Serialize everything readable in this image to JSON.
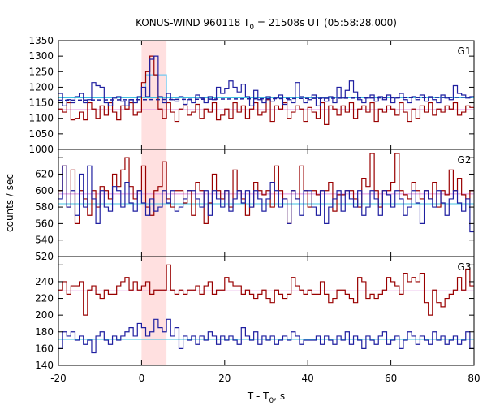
{
  "chart_data": {
    "type": "line",
    "title_parts": {
      "prefix": "KONUS-WIND 960118 T",
      "sub": "0",
      "suffix": " = 21508s UT (05:58:28.000)"
    },
    "xlabel_parts": {
      "prefix": "T - T",
      "sub": "0",
      "suffix": ", s"
    },
    "ylabel": "counts / sec",
    "xlim": [
      -20,
      80
    ],
    "x_ticks": [
      -20,
      0,
      20,
      40,
      60,
      80
    ],
    "x_tick_labels": [
      "-20",
      "0",
      "20",
      "40",
      "60",
      "80"
    ],
    "highlight_interval": [
      0.0,
      6.0
    ],
    "highlight_color": "#ffe0e0",
    "colors": {
      "red_series": "#990000",
      "blue_series": "#1f1fa0",
      "red_background": "#e090e0",
      "blue_background": "#40c0e0",
      "light_blue_step": "#70c8f0"
    },
    "bin_width": 1.0,
    "x_start": -20,
    "panels": [
      {
        "label": "G1",
        "ylim": [
          1000,
          1350
        ],
        "y_ticks": [
          1000,
          1050,
          1100,
          1150,
          1200,
          1250,
          1300,
          1350
        ],
        "y_tick_labels": [
          "1000",
          "1050",
          "1100",
          "1150",
          "1200",
          "1250",
          "1300",
          "1350"
        ],
        "background_red": 1128,
        "background_blue": 1166,
        "series": [
          {
            "color_key": "red_series",
            "values": [
              1130,
              1120,
              1150,
              1095,
              1100,
              1120,
              1095,
              1150,
              1130,
              1100,
              1140,
              1110,
              1150,
              1120,
              1095,
              1140,
              1130,
              1150,
              1110,
              1120,
              1215,
              1250,
              1300,
              1240,
              1130,
              1100,
              1150,
              1120,
              1090,
              1130,
              1140,
              1110,
              1120,
              1145,
              1100,
              1130,
              1120,
              1150,
              1095,
              1110,
              1130,
              1100,
              1150,
              1120,
              1140,
              1100,
              1130,
              1150,
              1110,
              1120,
              1160,
              1090,
              1140,
              1130,
              1150,
              1100,
              1120,
              1140,
              1130,
              1090,
              1135,
              1120,
              1100,
              1150,
              1080,
              1140,
              1130,
              1110,
              1140,
              1120,
              1150,
              1100,
              1130,
              1140,
              1120,
              1150,
              1090,
              1130,
              1120,
              1140,
              1130,
              1110,
              1150,
              1120,
              1090,
              1130,
              1100,
              1140,
              1120,
              1150,
              1110,
              1130,
              1120,
              1140,
              1130,
              1150,
              1110,
              1120,
              1140,
              1135
            ]
          },
          {
            "color_key": "blue_series",
            "values": [
              1180,
              1140,
              1160,
              1150,
              1170,
              1180,
              1150,
              1160,
              1215,
              1205,
              1200,
              1150,
              1140,
              1165,
              1170,
              1155,
              1140,
              1160,
              1150,
              1170,
              1200,
              1170,
              1290,
              1300,
              1170,
              1150,
              1180,
              1160,
              1155,
              1170,
              1145,
              1160,
              1150,
              1175,
              1165,
              1150,
              1170,
              1160,
              1200,
              1180,
              1195,
              1220,
              1200,
              1185,
              1210,
              1170,
              1140,
              1190,
              1160,
              1150,
              1170,
              1155,
              1165,
              1175,
              1145,
              1160,
              1150,
              1215,
              1170,
              1150,
              1160,
              1175,
              1140,
              1165,
              1155,
              1170,
              1150,
              1200,
              1165,
              1190,
              1220,
              1185,
              1160,
              1150,
              1165,
              1175,
              1155,
              1170,
              1160,
              1175,
              1150,
              1165,
              1180,
              1160,
              1150,
              1170,
              1160,
              1175,
              1155,
              1170,
              1160,
              1150,
              1175,
              1165,
              1160,
              1205,
              1180,
              1175,
              1165,
              1170
            ]
          }
        ],
        "dashed_blue": {
          "x": [
            -20,
            80
          ],
          "y": [
            1158,
            1168
          ]
        },
        "light_blue_box": {
          "x": [
            1,
            6
          ],
          "y": 1240
        },
        "label_x": 76
      },
      {
        "label": "G2",
        "ylim": [
          520,
          650
        ],
        "y_ticks": [
          520,
          540,
          560,
          580,
          600,
          620,
          640
        ],
        "y_tick_labels": [
          "520",
          "540",
          "560",
          "580",
          "600",
          "620",
          "640"
        ],
        "background_red": 596,
        "background_blue": 584,
        "series": [
          {
            "color_key": "red_series",
            "values": [
              600,
              630,
              580,
              625,
              560,
              600,
              590,
              570,
              600,
              580,
              605,
              600,
              590,
              620,
              605,
              625,
              640,
              605,
              590,
              600,
              630,
              580,
              570,
              600,
              605,
              635,
              590,
              580,
              600,
              600,
              585,
              600,
              570,
              610,
              600,
              560,
              585,
              620,
              600,
              590,
              600,
              580,
              625,
              600,
              590,
              570,
              580,
              610,
              600,
              595,
              600,
              580,
              630,
              600,
              590,
              560,
              600,
              590,
              630,
              600,
              580,
              600,
              595,
              600,
              600,
              610,
              575,
              595,
              595,
              600,
              600,
              590,
              580,
              615,
              605,
              645,
              600,
              580,
              600,
              600,
              610,
              645,
              600,
              595,
              590,
              610,
              600,
              590,
              600,
              590,
              610,
              580,
              600,
              595,
              625,
              600,
              615,
              595,
              590,
              600
            ]
          },
          {
            "color_key": "blue_series",
            "values": [
              590,
              630,
              580,
              600,
              570,
              620,
              580,
              630,
              590,
              560,
              600,
              580,
              575,
              605,
              600,
              580,
              610,
              585,
              575,
              600,
              585,
              570,
              590,
              575,
              580,
              600,
              585,
              600,
              575,
              580,
              590,
              600,
              600,
              590,
              580,
              600,
              570,
              600,
              590,
              580,
              600,
              575,
              590,
              600,
              585,
              600,
              580,
              600,
              590,
              575,
              590,
              610,
              600,
              580,
              590,
              560,
              600,
              590,
              570,
              600,
              600,
              580,
              570,
              600,
              560,
              580,
              590,
              600,
              575,
              600,
              590,
              580,
              600,
              570,
              580,
              600,
              590,
              570,
              600,
              595,
              580,
              600,
              590,
              570,
              580,
              600,
              585,
              560,
              600,
              590,
              580,
              600,
              585,
              570,
              590,
              600,
              585,
              575,
              590,
              550
            ]
          }
        ],
        "label_x": 76
      },
      {
        "label": "G3",
        "ylim": [
          140,
          270
        ],
        "y_ticks": [
          140,
          160,
          180,
          200,
          220,
          240,
          260
        ],
        "y_tick_labels": [
          "140",
          "160",
          "180",
          "200",
          "220",
          "240",
          "260"
        ],
        "background_red": 229,
        "background_blue": 171,
        "series": [
          {
            "color_key": "red_series",
            "values": [
              230,
              240,
              225,
              235,
              235,
              240,
              200,
              230,
              235,
              225,
              220,
              230,
              225,
              225,
              235,
              240,
              245,
              230,
              240,
              230,
              235,
              240,
              225,
              230,
              230,
              230,
              260,
              230,
              225,
              230,
              225,
              230,
              230,
              235,
              225,
              235,
              240,
              225,
              230,
              230,
              245,
              240,
              235,
              235,
              225,
              230,
              225,
              220,
              225,
              230,
              220,
              215,
              230,
              225,
              220,
              225,
              245,
              235,
              230,
              225,
              230,
              225,
              225,
              240,
              225,
              215,
              220,
              230,
              230,
              225,
              220,
              215,
              245,
              240,
              220,
              225,
              220,
              225,
              230,
              245,
              240,
              235,
              225,
              250,
              240,
              245,
              240,
              250,
              215,
              200,
              230,
              215,
              210,
              220,
              225,
              230,
              245,
              230,
              255,
              235
            ]
          },
          {
            "color_key": "blue_series",
            "values": [
              160,
              180,
              175,
              180,
              170,
              175,
              165,
              170,
              155,
              175,
              180,
              170,
              165,
              175,
              170,
              175,
              180,
              185,
              175,
              190,
              185,
              175,
              180,
              195,
              185,
              180,
              195,
              175,
              185,
              160,
              175,
              170,
              175,
              165,
              175,
              170,
              180,
              175,
              165,
              175,
              170,
              175,
              170,
              165,
              185,
              175,
              170,
              180,
              165,
              175,
              170,
              175,
              165,
              170,
              175,
              170,
              180,
              175,
              165,
              170,
              170,
              170,
              175,
              165,
              175,
              170,
              165,
              175,
              170,
              180,
              165,
              175,
              170,
              160,
              175,
              170,
              165,
              175,
              180,
              165,
              170,
              175,
              160,
              170,
              180,
              175,
              165,
              175,
              170,
              165,
              180,
              170,
              175,
              165,
              170,
              175,
              165,
              170,
              180,
              160
            ]
          }
        ],
        "label_x": 76
      }
    ]
  }
}
